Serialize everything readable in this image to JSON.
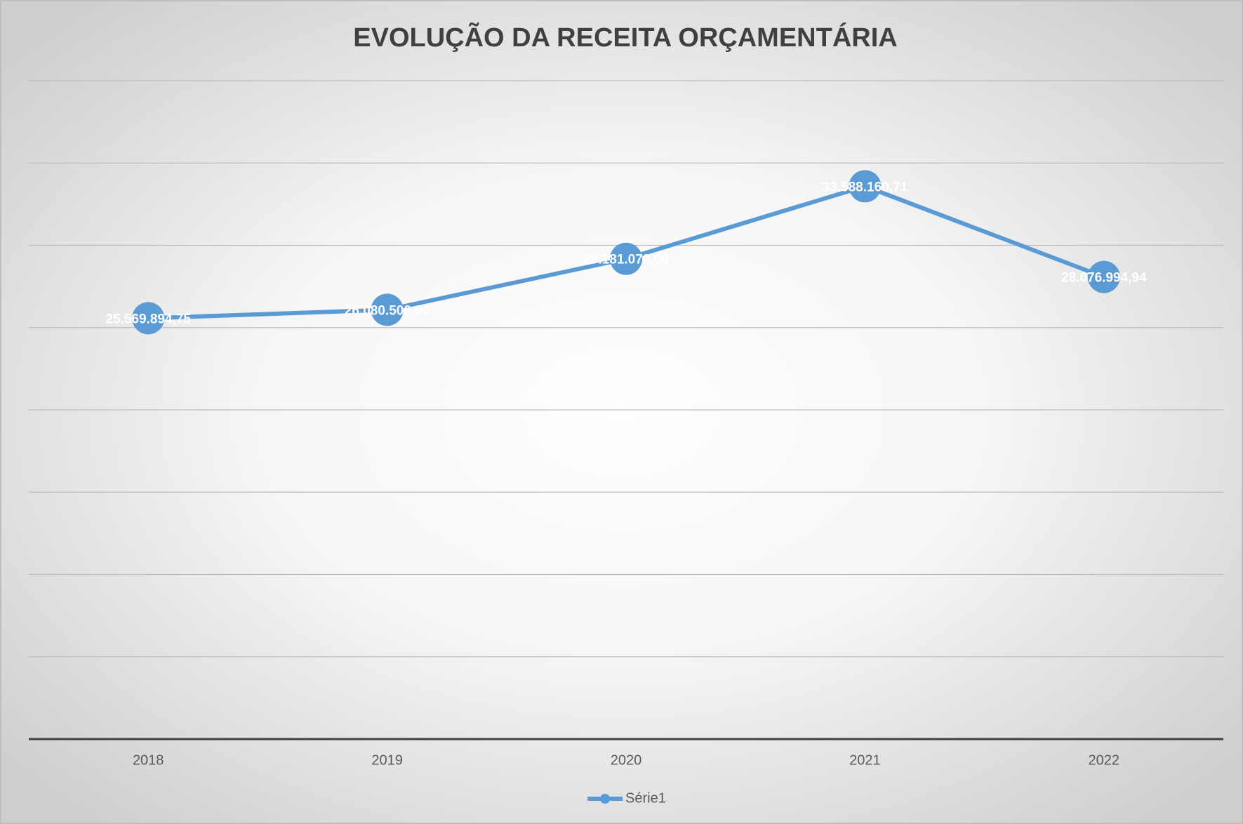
{
  "chart_data": {
    "type": "line",
    "title": "EVOLUÇÃO DA RECEITA ORÇAMENTÁRIA",
    "categories": [
      "2018",
      "2019",
      "2020",
      "2021",
      "2022"
    ],
    "series": [
      {
        "name": "Série1",
        "color": "#5b9bd5",
        "values": [
          25569894.75,
          26080500,
          29181070,
          33588160.71,
          28076994.94
        ],
        "value_labels": [
          "25.569.894,75",
          "26.080.500,00",
          "29.181.070,00",
          "33.588.160,71",
          "28.076.994,94"
        ]
      }
    ],
    "ylim": [
      0,
      40000000
    ],
    "yticks": [
      0,
      5000000,
      10000000,
      15000000,
      20000000,
      25000000,
      30000000,
      35000000,
      40000000
    ],
    "grid": true,
    "legend": "bottom"
  }
}
